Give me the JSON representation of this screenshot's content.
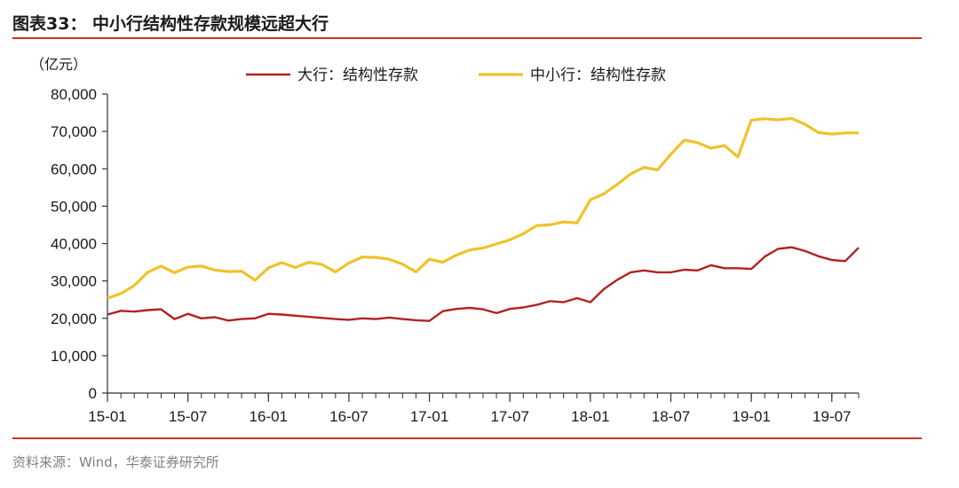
{
  "header": {
    "title": "图表33：  中小行结构性存款规模远超大行"
  },
  "footer": {
    "source": "资料来源：Wind，华泰证券研究所"
  },
  "colors": {
    "big_bank": "#b22222",
    "small_bank": "#f0c22b",
    "rule": "#c0392b",
    "axis": "#333333"
  },
  "chart_data": {
    "type": "line",
    "title": "",
    "unit_label": "（亿元）",
    "xlabel": "",
    "ylabel": "",
    "ylim": [
      0,
      80000
    ],
    "yticks": [
      0,
      10000,
      20000,
      30000,
      40000,
      50000,
      60000,
      70000,
      80000
    ],
    "ytick_labels": [
      "0",
      "10,000",
      "20,000",
      "30,000",
      "40,000",
      "50,000",
      "60,000",
      "70,000",
      "80,000"
    ],
    "xtick_labels": [
      "15-01",
      "15-07",
      "16-01",
      "16-07",
      "17-01",
      "17-07",
      "18-01",
      "18-07",
      "19-01",
      "19-07"
    ],
    "xtick_index": [
      0,
      6,
      12,
      18,
      24,
      30,
      36,
      42,
      48,
      54
    ],
    "x": [
      "15-01",
      "15-02",
      "15-03",
      "15-04",
      "15-05",
      "15-06",
      "15-07",
      "15-08",
      "15-09",
      "15-10",
      "15-11",
      "15-12",
      "16-01",
      "16-02",
      "16-03",
      "16-04",
      "16-05",
      "16-06",
      "16-07",
      "16-08",
      "16-09",
      "16-10",
      "16-11",
      "16-12",
      "17-01",
      "17-02",
      "17-03",
      "17-04",
      "17-05",
      "17-06",
      "17-07",
      "17-08",
      "17-09",
      "17-10",
      "17-11",
      "17-12",
      "18-01",
      "18-02",
      "18-03",
      "18-04",
      "18-05",
      "18-06",
      "18-07",
      "18-08",
      "18-09",
      "18-10",
      "18-11",
      "18-12",
      "19-01",
      "19-02",
      "19-03",
      "19-04",
      "19-05",
      "19-06",
      "19-07",
      "19-08",
      "19-09"
    ],
    "legend_position": "top",
    "grid": false,
    "series": [
      {
        "name": "大行：结构性存款",
        "color": "#b22222",
        "values": [
          21000,
          22000,
          21800,
          22200,
          22400,
          19800,
          21200,
          20000,
          20300,
          19400,
          19800,
          20000,
          21200,
          21000,
          20700,
          20400,
          20100,
          19800,
          19600,
          20000,
          19800,
          20200,
          19800,
          19500,
          19300,
          21900,
          22500,
          22800,
          22400,
          21400,
          22500,
          22900,
          23600,
          24600,
          24300,
          25400,
          24300,
          27800,
          30300,
          32300,
          32800,
          32300,
          32300,
          33000,
          32800,
          34200,
          33400,
          33400,
          33200,
          36500,
          38600,
          39000,
          38000,
          36600,
          35600,
          35300,
          38900
        ]
      },
      {
        "name": "中小行：结构性存款",
        "color": "#f0c22b",
        "values": [
          25400,
          26600,
          28800,
          32300,
          34000,
          32200,
          33700,
          34000,
          32900,
          32500,
          32600,
          30200,
          33500,
          34900,
          33600,
          35000,
          34400,
          32400,
          34800,
          36400,
          36300,
          35800,
          34500,
          32400,
          35800,
          35000,
          36900,
          38300,
          38800,
          39900,
          41000,
          42600,
          44800,
          45000,
          45800,
          45500,
          51700,
          53300,
          55800,
          58600,
          60400,
          59700,
          63900,
          67700,
          67000,
          65500,
          66200,
          63200,
          73000,
          73400,
          73100,
          73500,
          71900,
          69700,
          69300,
          69600,
          69600
        ]
      }
    ]
  }
}
